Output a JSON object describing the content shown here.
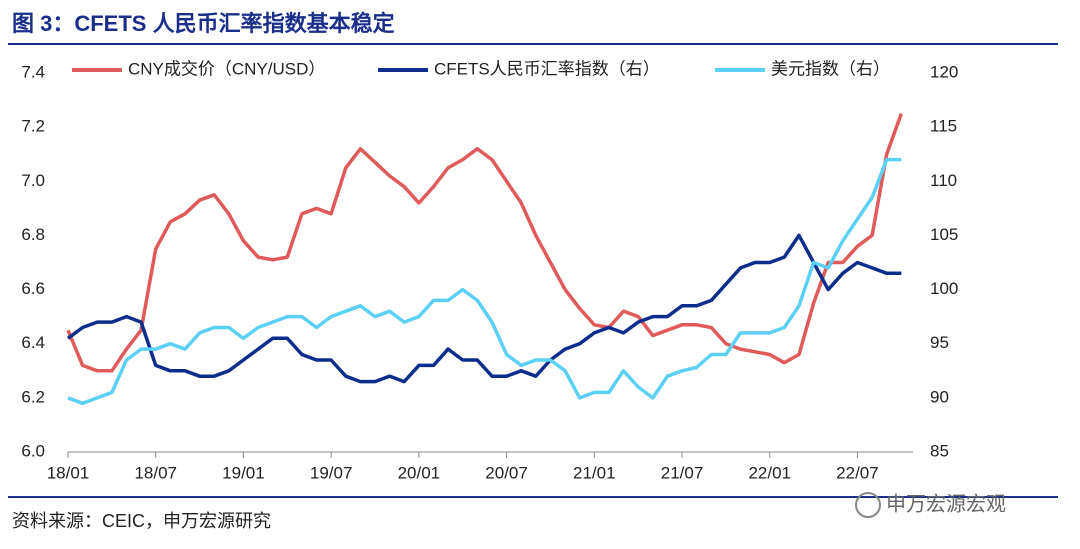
{
  "chart_data": {
    "type": "line",
    "title": "图 3：CFETS 人民币汇率指数基本稳定",
    "source": "资料来源：CEIC，申万宏源研究",
    "watermark": "申万宏源宏观",
    "categories": [
      "18/01",
      null,
      null,
      null,
      null,
      null,
      "18/07",
      null,
      null,
      null,
      null,
      null,
      "19/01",
      null,
      null,
      null,
      null,
      null,
      "19/07",
      null,
      null,
      null,
      null,
      null,
      "20/01",
      null,
      null,
      null,
      null,
      null,
      "20/07",
      null,
      null,
      null,
      null,
      null,
      "21/01",
      null,
      null,
      null,
      null,
      null,
      "21/07",
      null,
      null,
      null,
      null,
      null,
      "22/01",
      null,
      null,
      null,
      null,
      null,
      "22/07",
      null,
      null,
      null
    ],
    "series": [
      {
        "name": "CNY成交价（CNY/USD）",
        "color": "#e05a5a",
        "axis": "y",
        "values": [
          6.45,
          6.32,
          6.3,
          6.3,
          6.38,
          6.45,
          6.75,
          6.85,
          6.88,
          6.93,
          6.95,
          6.88,
          6.78,
          6.72,
          6.71,
          6.72,
          6.88,
          6.9,
          6.88,
          7.05,
          7.12,
          7.07,
          7.02,
          6.98,
          6.92,
          6.98,
          7.05,
          7.08,
          7.12,
          7.08,
          7.0,
          6.92,
          6.8,
          6.7,
          6.6,
          6.53,
          6.47,
          6.46,
          6.52,
          6.5,
          6.43,
          6.45,
          6.47,
          6.47,
          6.46,
          6.4,
          6.38,
          6.37,
          6.36,
          6.33,
          6.36,
          6.55,
          6.7,
          6.7,
          6.76,
          6.8,
          7.1,
          7.25
        ]
      },
      {
        "name": "CFETS人民币汇率指数（右）",
        "color": "#0c2d8c",
        "axis": "y2",
        "values": [
          95.5,
          96.5,
          97,
          97,
          97.5,
          97,
          93,
          92.5,
          92.5,
          92,
          92,
          92.5,
          93.5,
          94.5,
          95.5,
          95.5,
          94,
          93.5,
          93.5,
          92,
          91.5,
          91.5,
          92,
          91.5,
          93,
          93,
          94.5,
          93.5,
          93.5,
          92,
          92,
          92.5,
          92,
          93.5,
          94.5,
          95,
          96,
          96.5,
          96,
          97,
          97.5,
          97.5,
          98.5,
          98.5,
          99,
          100.5,
          102,
          102.5,
          102.5,
          103,
          105,
          102.5,
          100,
          101.5,
          102.5,
          102,
          101.5,
          101.5
        ]
      },
      {
        "name": "美元指数（右）",
        "color": "#5bd0f5",
        "axis": "y2",
        "values": [
          90,
          89.5,
          90,
          90.5,
          93.5,
          94.5,
          94.5,
          95,
          94.5,
          96,
          96.5,
          96.5,
          95.5,
          96.5,
          97,
          97.5,
          97.5,
          96.5,
          97.5,
          98,
          98.5,
          97.5,
          98,
          97,
          97.5,
          99,
          99,
          100,
          99,
          97,
          94,
          93,
          93.5,
          93.5,
          92.5,
          90,
          90.5,
          90.5,
          92.5,
          91,
          90,
          92,
          92.5,
          92.8,
          94,
          94,
          96,
          96,
          96,
          96.5,
          98.5,
          102.5,
          102,
          104.5,
          106.5,
          108.5,
          112,
          112
        ]
      }
    ],
    "ylim": [
      6.0,
      7.4
    ],
    "yticks": [
      {
        "value": 6.0,
        "label": "6.0"
      },
      6.2,
      6.4,
      6.6,
      6.8,
      {
        "value": 7.0,
        "label": "7.0"
      },
      7.2,
      7.4
    ],
    "y2lim": [
      85,
      120
    ],
    "y2ticks": [
      85,
      90,
      95,
      100,
      105,
      110,
      115,
      120
    ],
    "legend": "top"
  }
}
